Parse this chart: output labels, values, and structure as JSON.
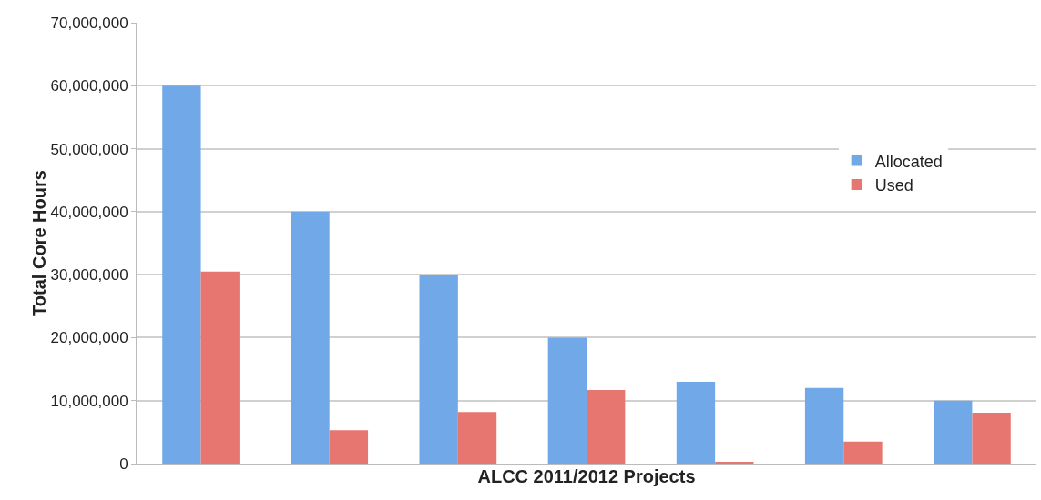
{
  "chart_data": {
    "type": "bar",
    "xlabel": "ALCC 2011/2012 Projects",
    "ylabel": "Total Core Hours",
    "categories": [
      null,
      null,
      null,
      null,
      null,
      null,
      null
    ],
    "series": [
      {
        "name": "Allocated",
        "color": "#70a8e8",
        "values": [
          60000000,
          40000000,
          30000000,
          20000000,
          13000000,
          12000000,
          10000000
        ]
      },
      {
        "name": "Used",
        "color": "#e87670",
        "values": [
          30500000,
          5300000,
          8200000,
          11700000,
          200000,
          3500000,
          8100000
        ]
      }
    ],
    "ylim": [
      0,
      70000000
    ],
    "yticks": [
      {
        "value": 0,
        "label": "0"
      },
      {
        "value": 10000000,
        "label": "10,000,000"
      },
      {
        "value": 20000000,
        "label": "20,000,000"
      },
      {
        "value": 30000000,
        "label": "30,000,000"
      },
      {
        "value": 40000000,
        "label": "40,000,000"
      },
      {
        "value": 50000000,
        "label": "50,000,000"
      },
      {
        "value": 60000000,
        "label": "60,000,000"
      },
      {
        "value": 70000000,
        "label": "70,000,000"
      }
    ],
    "grid": "y",
    "legend": "right"
  }
}
